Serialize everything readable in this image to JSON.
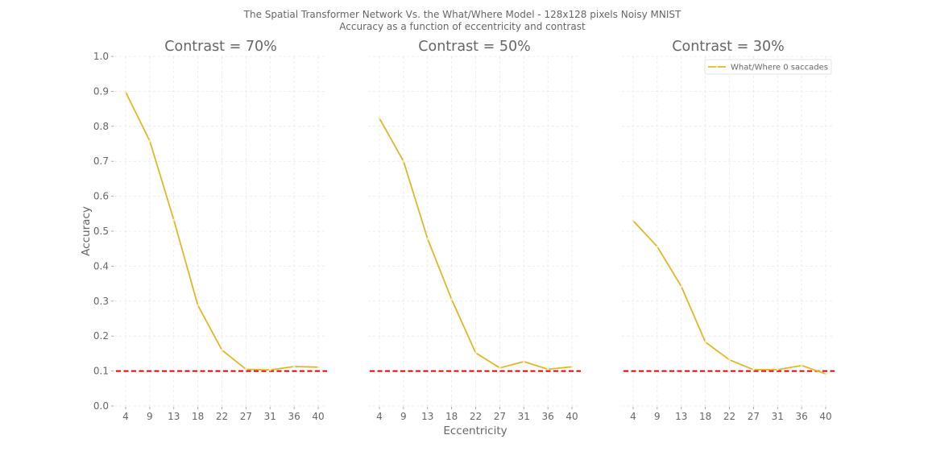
{
  "figure": {
    "title_line1": "The Spatial Transformer Network Vs. the What/Where Model - 128x128 pixels Noisy MNIST",
    "title_line2": "Accuracy as a function of eccentricity and contrast",
    "xlabel": "Eccentricity",
    "ylabel": "Accuracy"
  },
  "chart_data": [
    {
      "type": "line",
      "title": "Contrast = 70%",
      "categories": [
        "4",
        "9",
        "13",
        "18",
        "22",
        "27",
        "31",
        "36",
        "40"
      ],
      "series": [
        {
          "name": "What/Where 0 saccades",
          "color": "#e1b72a",
          "values": [
            0.898,
            0.758,
            0.532,
            0.288,
            0.16,
            0.105,
            0.103,
            0.113,
            0.111
          ]
        }
      ],
      "reference_line": {
        "y": 0.1,
        "color": "#e00000"
      },
      "ylim": [
        0.0,
        1.0
      ],
      "yticks": [
        "0.0",
        "0.1",
        "0.2",
        "0.3",
        "0.4",
        "0.5",
        "0.6",
        "0.7",
        "0.8",
        "0.9",
        "1.0"
      ],
      "ylabel": "Accuracy",
      "xlabel": "",
      "grid": true,
      "legend": null
    },
    {
      "type": "line",
      "title": "Contrast = 50%",
      "categories": [
        "4",
        "9",
        "13",
        "18",
        "22",
        "27",
        "31",
        "36",
        "40"
      ],
      "series": [
        {
          "name": "What/Where 0 saccades",
          "color": "#e1b72a",
          "values": [
            0.823,
            0.7,
            0.478,
            0.305,
            0.152,
            0.109,
            0.127,
            0.105,
            0.112
          ]
        }
      ],
      "reference_line": {
        "y": 0.1,
        "color": "#e00000"
      },
      "ylim": [
        0.0,
        1.0
      ],
      "ylabel": "",
      "xlabel": "Eccentricity",
      "grid": true,
      "legend": null
    },
    {
      "type": "line",
      "title": "Contrast = 30%",
      "categories": [
        "4",
        "9",
        "13",
        "18",
        "22",
        "27",
        "31",
        "36",
        "40"
      ],
      "series": [
        {
          "name": "What/Where 0 saccades",
          "color": "#e1b72a",
          "values": [
            0.53,
            0.456,
            0.342,
            0.183,
            0.132,
            0.104,
            0.104,
            0.116,
            0.092
          ]
        }
      ],
      "reference_line": {
        "y": 0.1,
        "color": "#e00000"
      },
      "ylim": [
        0.0,
        1.0
      ],
      "ylabel": "",
      "xlabel": "",
      "grid": true,
      "legend": "top-right"
    }
  ]
}
